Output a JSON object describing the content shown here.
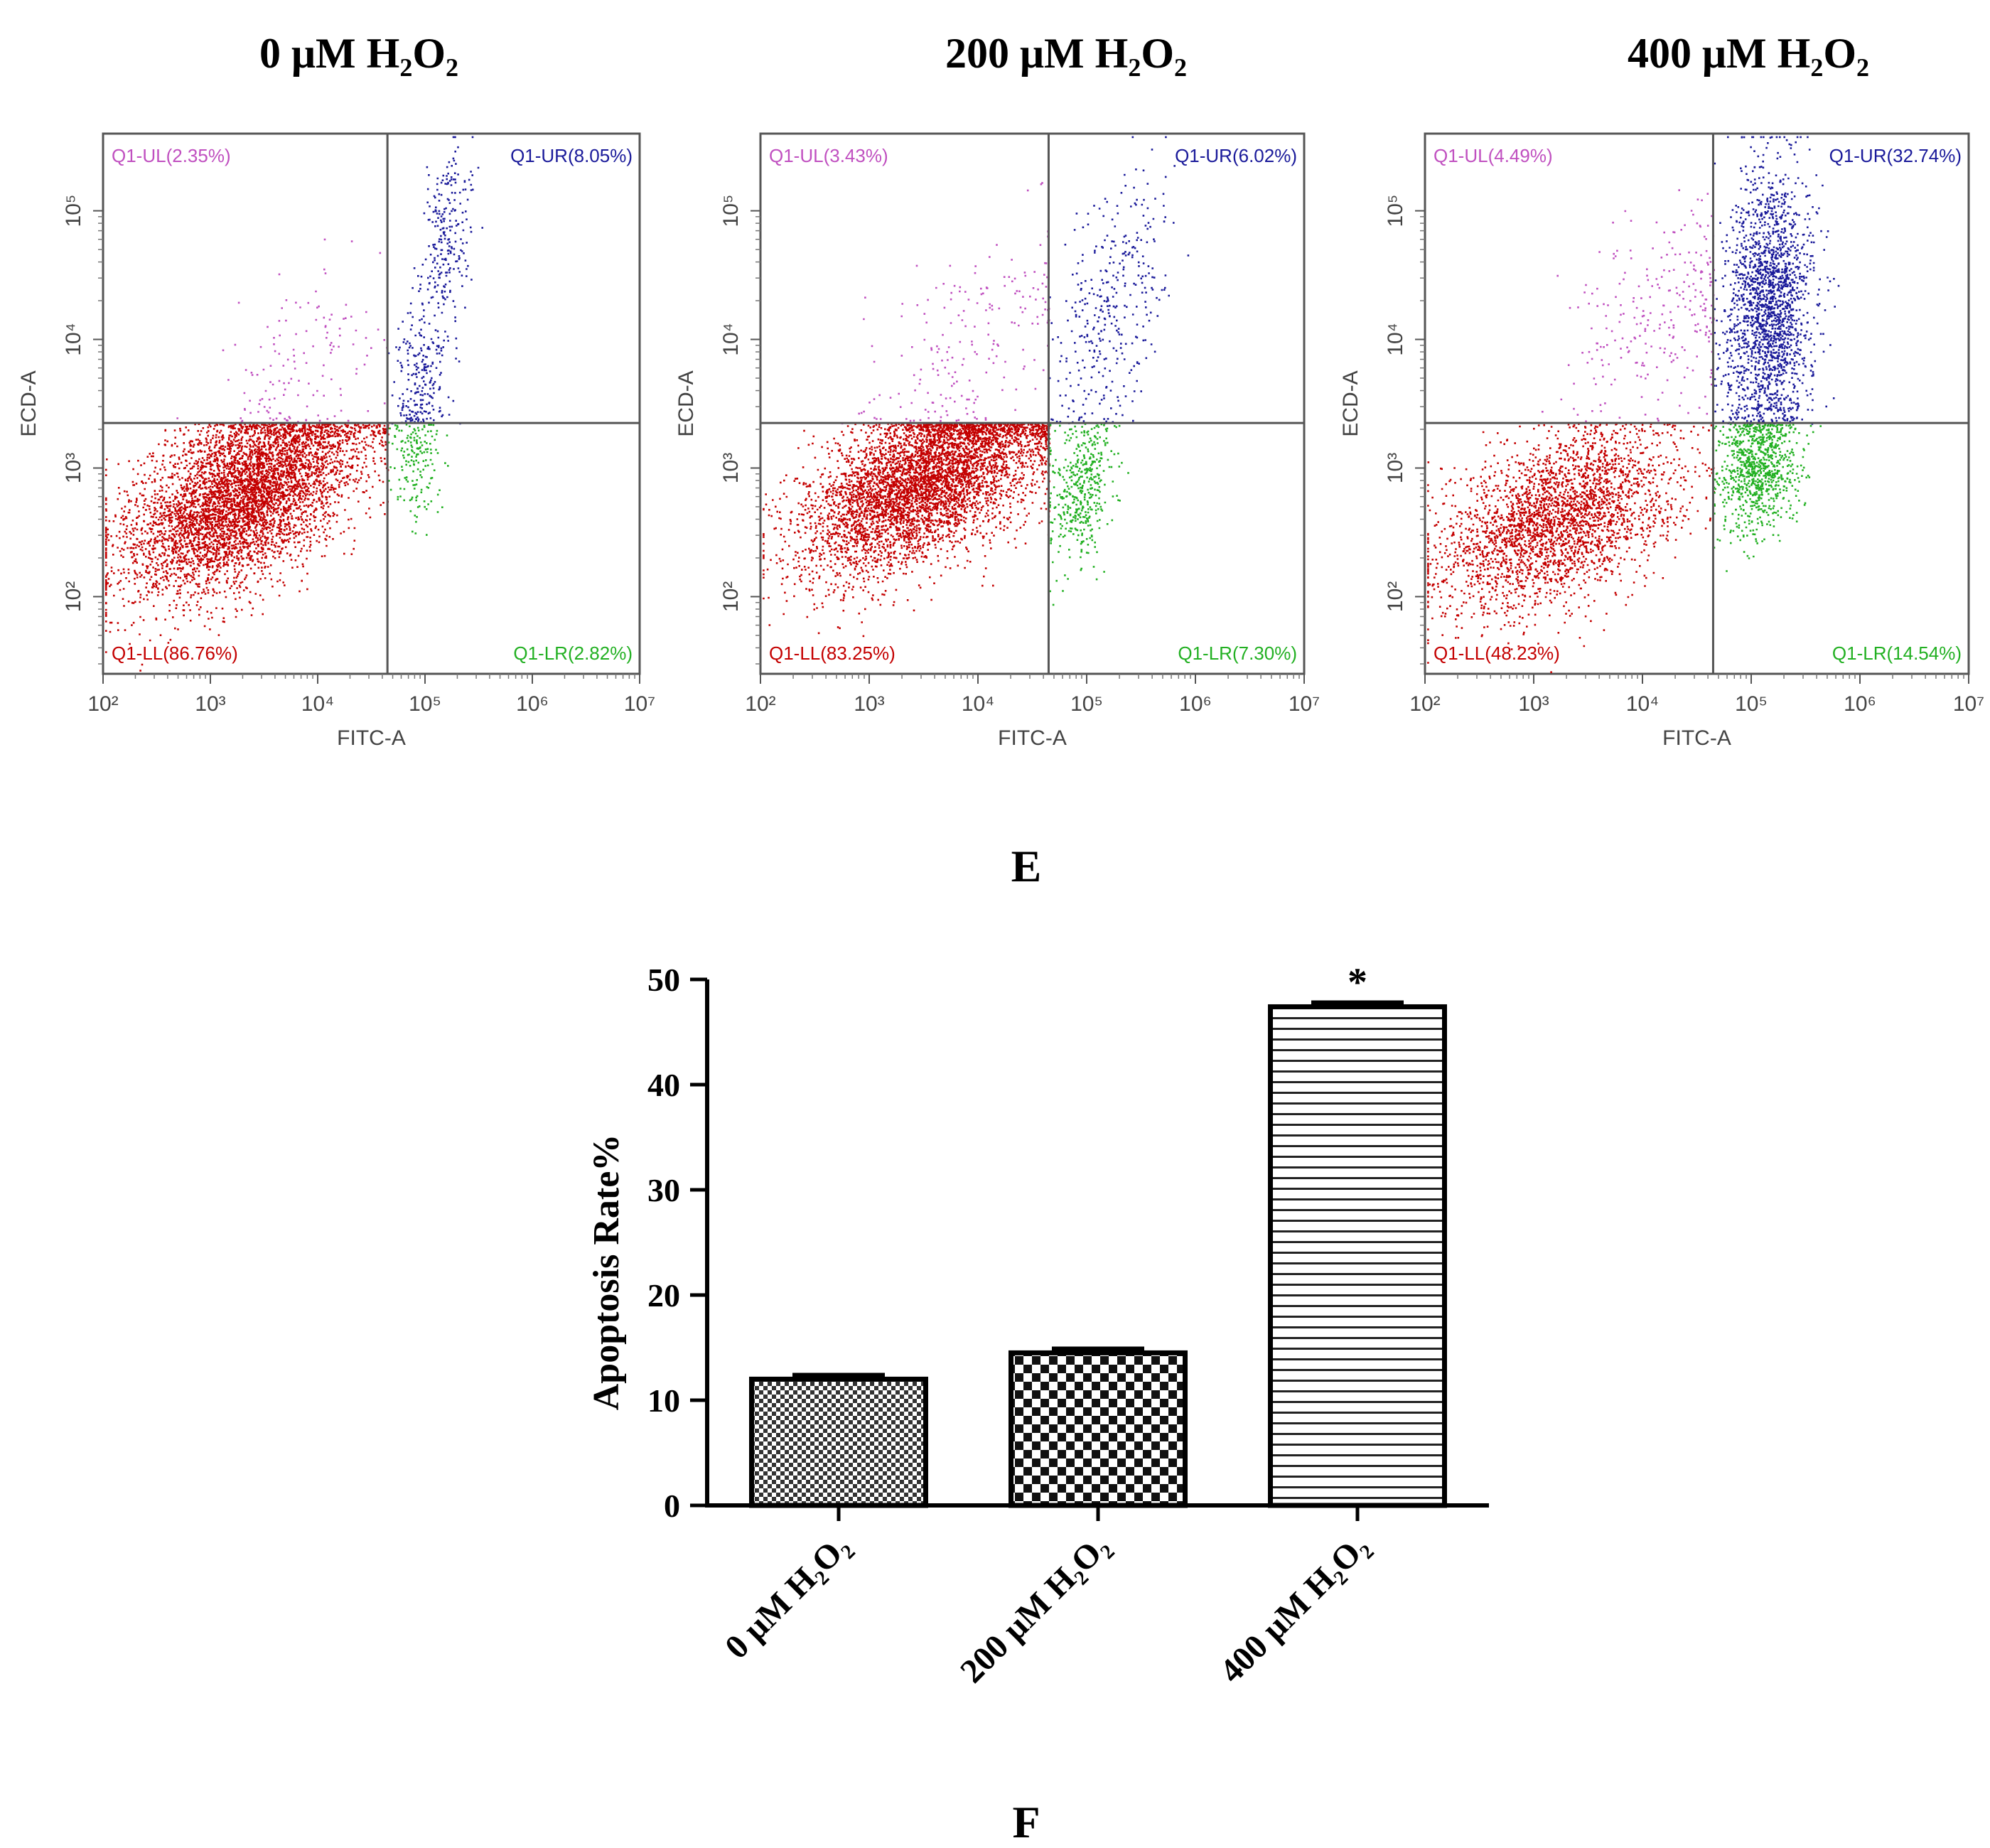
{
  "figure": {
    "panel_e_letter": "E",
    "panel_f_letter": "F"
  },
  "chart_data": [
    {
      "type": "scatter",
      "title": "0 μM H₂O₂",
      "xlabel": "FITC-A",
      "ylabel": "ECD-A",
      "x_scale": "log",
      "y_scale": "log",
      "xlim_exp": [
        2,
        7
      ],
      "ylim_exp": [
        1.4,
        5.6
      ],
      "x_tick_labels": [
        "10²",
        "10³",
        "10⁴",
        "10⁵",
        "10⁶",
        "10⁷"
      ],
      "y_tick_labels": [
        "10²",
        "10³",
        "10⁴",
        "10⁵"
      ],
      "gate": {
        "x_exp": 4.65,
        "y_exp": 3.35
      },
      "quadrants": [
        {
          "key": "UL",
          "label": "Q1-UL(2.35%)",
          "percent": 2.35,
          "color": "#c050c0"
        },
        {
          "key": "UR",
          "label": "Q1-UR(8.05%)",
          "percent": 8.05,
          "color": "#1a1a9a"
        },
        {
          "key": "LL",
          "label": "Q1-LL(86.76%)",
          "percent": 86.76,
          "color": "#c40000"
        },
        {
          "key": "LR",
          "label": "Q1-LR(2.82%)",
          "percent": 2.82,
          "color": "#22b022"
        }
      ],
      "clusters": [
        {
          "quadrant": "LL",
          "cx": 3.3,
          "cy": 2.8,
          "sx": 0.55,
          "sy": 0.38,
          "rho": 0.55
        },
        {
          "quadrant": "UR",
          "cx": 5.2,
          "cy": 4.8,
          "sx": 0.12,
          "sy": 0.35,
          "rho": 0.3
        },
        {
          "quadrant": "UR",
          "cx": 4.95,
          "cy": 3.7,
          "sx": 0.12,
          "sy": 0.3,
          "rho": 0.2
        },
        {
          "quadrant": "LR",
          "cx": 4.9,
          "cy": 3.05,
          "sx": 0.12,
          "sy": 0.25,
          "rho": 0
        },
        {
          "quadrant": "UL",
          "cx": 3.9,
          "cy": 3.8,
          "sx": 0.45,
          "sy": 0.4,
          "rho": 0.4
        }
      ]
    },
    {
      "type": "scatter",
      "title": "200 μM H₂O₂",
      "xlabel": "FITC-A",
      "ylabel": "ECD-A",
      "x_scale": "log",
      "y_scale": "log",
      "xlim_exp": [
        2,
        7
      ],
      "ylim_exp": [
        1.4,
        5.6
      ],
      "x_tick_labels": [
        "10²",
        "10³",
        "10⁴",
        "10⁵",
        "10⁶",
        "10⁷"
      ],
      "y_tick_labels": [
        "10²",
        "10³",
        "10⁴",
        "10⁵"
      ],
      "gate": {
        "x_exp": 4.65,
        "y_exp": 3.35
      },
      "quadrants": [
        {
          "key": "UL",
          "label": "Q1-UL(3.43%)",
          "percent": 3.43,
          "color": "#c050c0"
        },
        {
          "key": "UR",
          "label": "Q1-UR(6.02%)",
          "percent": 6.02,
          "color": "#1a1a9a"
        },
        {
          "key": "LL",
          "label": "Q1-LL(83.25%)",
          "percent": 83.25,
          "color": "#c40000"
        },
        {
          "key": "LR",
          "label": "Q1-LR(7.30%)",
          "percent": 7.3,
          "color": "#22b022"
        }
      ],
      "clusters": [
        {
          "quadrant": "LL",
          "cx": 3.5,
          "cy": 2.9,
          "sx": 0.55,
          "sy": 0.35,
          "rho": 0.55
        },
        {
          "quadrant": "UR",
          "cx": 5.2,
          "cy": 4.2,
          "sx": 0.25,
          "sy": 0.5,
          "rho": 0.5
        },
        {
          "quadrant": "LR",
          "cx": 4.95,
          "cy": 2.85,
          "sx": 0.15,
          "sy": 0.3,
          "rho": 0.2
        },
        {
          "quadrant": "UL",
          "cx": 4.0,
          "cy": 4.0,
          "sx": 0.5,
          "sy": 0.45,
          "rho": 0.5
        }
      ]
    },
    {
      "type": "scatter",
      "title": "400 μM H₂O₂",
      "xlabel": "FITC-A",
      "ylabel": "ECD-A",
      "x_scale": "log",
      "y_scale": "log",
      "xlim_exp": [
        2,
        7
      ],
      "ylim_exp": [
        1.4,
        5.6
      ],
      "x_tick_labels": [
        "10²",
        "10³",
        "10⁴",
        "10⁵",
        "10⁶",
        "10⁷"
      ],
      "y_tick_labels": [
        "10²",
        "10³",
        "10⁴",
        "10⁵"
      ],
      "gate": {
        "x_exp": 4.65,
        "y_exp": 3.35
      },
      "quadrants": [
        {
          "key": "UL",
          "label": "Q1-UL(4.49%)",
          "percent": 4.49,
          "color": "#c050c0"
        },
        {
          "key": "UR",
          "label": "Q1-UR(32.74%)",
          "percent": 32.74,
          "color": "#1a1a9a"
        },
        {
          "key": "LL",
          "label": "Q1-LL(48.23%)",
          "percent": 48.23,
          "color": "#c40000"
        },
        {
          "key": "LR",
          "label": "Q1-LR(14.54%)",
          "percent": 14.54,
          "color": "#22b022"
        }
      ],
      "clusters": [
        {
          "quadrant": "LL",
          "cx": 3.2,
          "cy": 2.6,
          "sx": 0.55,
          "sy": 0.35,
          "rho": 0.45
        },
        {
          "quadrant": "UR",
          "cx": 5.15,
          "cy": 4.25,
          "sx": 0.2,
          "sy": 0.55,
          "rho": 0.1
        },
        {
          "quadrant": "LR",
          "cx": 5.05,
          "cy": 3.0,
          "sx": 0.18,
          "sy": 0.25,
          "rho": 0.1
        },
        {
          "quadrant": "UL",
          "cx": 4.2,
          "cy": 4.2,
          "sx": 0.45,
          "sy": 0.4,
          "rho": 0.3
        }
      ]
    },
    {
      "type": "bar",
      "categories": [
        "0 μM H₂O₂",
        "200 μM H₂O₂",
        "400 μM H₂O₂"
      ],
      "values": [
        12.0,
        14.5,
        47.4
      ],
      "errors": [
        0.4,
        0.4,
        0.4
      ],
      "significance": [
        "",
        "",
        "*"
      ],
      "patterns": [
        "fine-check",
        "checker",
        "horizontal-lines"
      ],
      "title": "",
      "xlabel": "",
      "ylabel": "Apoptosis Rate%",
      "ylim": [
        0,
        50
      ],
      "y_ticks": [
        0,
        10,
        20,
        30,
        40,
        50
      ]
    }
  ]
}
